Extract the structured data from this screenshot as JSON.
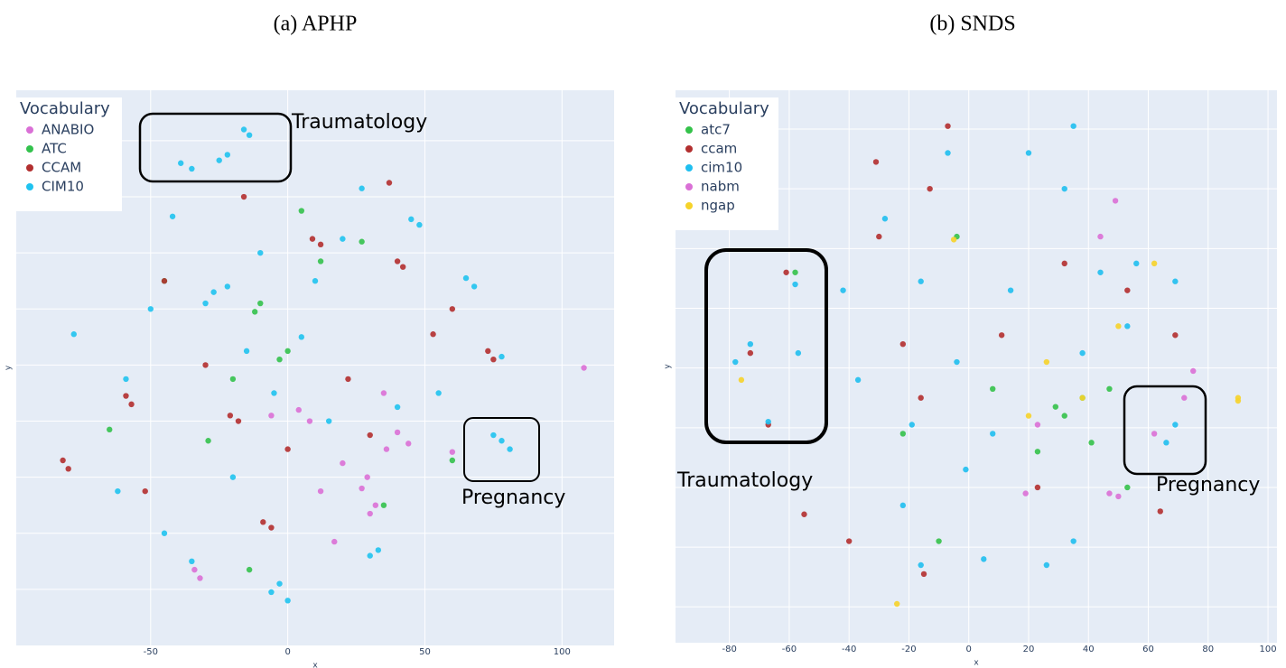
{
  "chart_data": [
    {
      "type": "scatter",
      "title": "(a) APHP",
      "x_label": "x",
      "y_label": "y",
      "legend_title": "Vocabulary",
      "annotations": [
        "Traumatology",
        "Pregnancy"
      ],
      "xlim": [
        -99,
        119
      ],
      "ylim": [
        -100,
        98
      ],
      "xticks": [
        -50,
        0,
        50,
        100
      ],
      "yticks": [
        -80,
        -60,
        -40,
        -20,
        0,
        20,
        40,
        60,
        80
      ],
      "grid": true,
      "series": [
        {
          "name": "ANABIO",
          "color": "#da70d6",
          "x": [
            27,
            29,
            30,
            32,
            4,
            8,
            40,
            36,
            44,
            -34,
            -32,
            108,
            17,
            60,
            -6,
            20,
            35,
            12
          ],
          "y": [
            -44,
            -40,
            -53,
            -50,
            -16,
            -20,
            -24,
            -30,
            -28,
            -73,
            -76,
            -1,
            -63,
            -31,
            -18,
            -35,
            -10,
            -45
          ]
        },
        {
          "name": "ATC",
          "color": "#33c24d",
          "x": [
            -12,
            -10,
            -3,
            0,
            -29,
            -14,
            27,
            -65,
            12,
            60,
            -45,
            35,
            -20,
            5
          ],
          "y": [
            19,
            22,
            2,
            5,
            -27,
            -73,
            44,
            -23,
            37,
            -34,
            30,
            -50,
            -5,
            55
          ]
        },
        {
          "name": "CCAM",
          "color": "#b22f2f",
          "x": [
            9,
            12,
            40,
            42,
            73,
            75,
            -82,
            -80,
            -59,
            -57,
            -21,
            -18,
            -9,
            -6,
            53,
            37,
            -52,
            -16,
            0,
            22,
            -30,
            -45,
            60,
            30
          ],
          "y": [
            45,
            43,
            37,
            35,
            5,
            2,
            -34,
            -37,
            -11,
            -14,
            -18,
            -20,
            -56,
            -58,
            11,
            65,
            -45,
            60,
            -30,
            -5,
            0,
            30,
            20,
            -25
          ]
        },
        {
          "name": "CIM10",
          "color": "#1fc3f0",
          "x": [
            -39,
            -35,
            -25,
            -22,
            -16,
            -14,
            78,
            75,
            81,
            -27,
            -30,
            -22,
            -6,
            -3,
            0,
            30,
            33,
            -78,
            45,
            48,
            65,
            68,
            78,
            -59,
            -62,
            -42,
            27,
            -10,
            5,
            15,
            -45,
            -20,
            10,
            40,
            -50,
            -5,
            20,
            -35,
            55,
            -15
          ],
          "y": [
            72,
            70,
            73,
            75,
            84,
            82,
            -27,
            -25,
            -30,
            26,
            22,
            28,
            -81,
            -78,
            -84,
            -68,
            -66,
            11,
            52,
            50,
            31,
            28,
            3,
            -5,
            -45,
            53,
            63,
            40,
            10,
            -20,
            -60,
            -40,
            30,
            -15,
            20,
            -10,
            45,
            -70,
            -10,
            5
          ]
        }
      ]
    },
    {
      "type": "scatter",
      "title": "(b) SNDS",
      "x_label": "x",
      "y_label": "y",
      "legend_title": "Vocabulary",
      "annotations": [
        "Traumatology",
        "Pregnancy"
      ],
      "xlim": [
        -98,
        103
      ],
      "ylim": [
        -92,
        93
      ],
      "xticks": [
        -80,
        -60,
        -40,
        -20,
        0,
        20,
        40,
        60,
        80,
        100
      ],
      "yticks": [
        -80,
        -60,
        -40,
        -20,
        0,
        20,
        40,
        60,
        80
      ],
      "grid": true,
      "series": [
        {
          "name": "atc7",
          "color": "#34c24a",
          "x": [
            38,
            32,
            47,
            41,
            -4,
            23,
            -58,
            -22,
            53,
            -10,
            8,
            29
          ],
          "y": [
            -10,
            -16,
            -7,
            -25,
            44,
            -28,
            32,
            -22,
            -40,
            -58,
            -7,
            -13
          ]
        },
        {
          "name": "ccam",
          "color": "#b22f2f",
          "x": [
            -31,
            -30,
            -13,
            32,
            -55,
            -40,
            -15,
            64,
            69,
            -7,
            -73,
            -67,
            -61,
            -22,
            11,
            23,
            53,
            -16
          ],
          "y": [
            69,
            44,
            60,
            35,
            -49,
            -58,
            -69,
            -48,
            11,
            81,
            5,
            -19,
            32,
            8,
            11,
            -40,
            26,
            -10
          ]
        },
        {
          "name": "cim10",
          "color": "#1fbff0",
          "x": [
            -78,
            -73,
            -57,
            -58,
            -67,
            66,
            69,
            -22,
            26,
            -16,
            5,
            32,
            20,
            -28,
            -42,
            -16,
            -4,
            8,
            38,
            53,
            69,
            35,
            -37,
            14,
            -1,
            35,
            -7,
            44,
            56,
            -19
          ],
          "y": [
            2,
            8,
            5,
            28,
            -18,
            -25,
            -19,
            -46,
            -66,
            -66,
            -64,
            60,
            72,
            50,
            26,
            29,
            2,
            -22,
            5,
            14,
            29,
            -58,
            -4,
            26,
            -34,
            81,
            72,
            32,
            35,
            -19
          ]
        },
        {
          "name": "nabm",
          "color": "#da70d6",
          "x": [
            47,
            50,
            19,
            62,
            72,
            75,
            49,
            23,
            44
          ],
          "y": [
            -42,
            -43,
            -42,
            -22,
            -10,
            -1,
            56,
            -19,
            44
          ]
        },
        {
          "name": "ngap",
          "color": "#f6d32a",
          "x": [
            90,
            90,
            62,
            20,
            38,
            -5,
            26,
            -24,
            -76,
            50
          ],
          "y": [
            -11,
            -10,
            35,
            -16,
            -10,
            43,
            2,
            -79,
            -4,
            14
          ]
        }
      ]
    }
  ]
}
